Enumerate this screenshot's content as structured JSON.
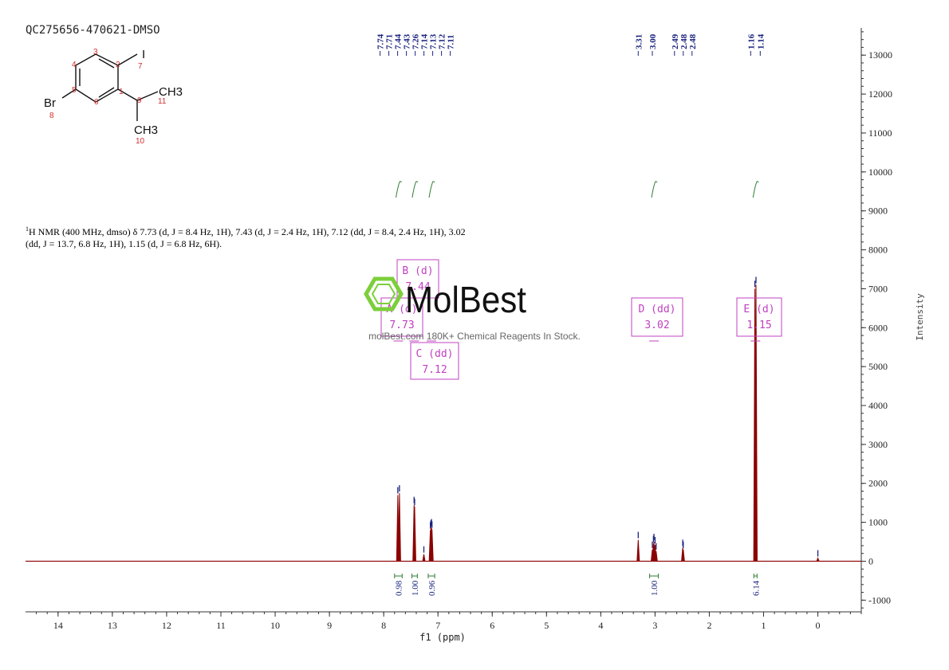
{
  "sample_id": "QC275656-470621-DMSO",
  "nmr_description": {
    "sup": "1",
    "text": "H NMR (400 MHz, dmso) δ 7.73 (d, J = 8.4 Hz, 1H), 7.43 (d, J = 2.4 Hz, 1H), 7.12 (dd, J = 8.4, 2.4 Hz, 1H), 3.02 (dd, J = 13.7, 6.8 Hz, 1H), 1.15 (d, J = 6.8 Hz, 6H)."
  },
  "molecule": {
    "atoms": [
      "I",
      "Br",
      "CH3",
      "CH3"
    ],
    "numbers": [
      "1",
      "2",
      "3",
      "4",
      "5",
      "6",
      "7",
      "8",
      "9",
      "10",
      "11"
    ]
  },
  "watermark": {
    "brand": "MolBest",
    "tagline": "molBest.com 180K+ Chemical Reagents In Stock."
  },
  "colors": {
    "spectrum": "#8b0000",
    "peak_label": "#1a237e",
    "integral": "#2e7d32",
    "multiplet_box": "#c040c0",
    "axis": "#333333",
    "watermark_green": "#7ccf3b"
  },
  "chart_data": {
    "type": "line",
    "title": "",
    "xlabel": "f1 (ppm)",
    "ylabel": "Intensity",
    "xlim": [
      14.6,
      -0.8
    ],
    "ylim": [
      -1300,
      13700
    ],
    "x_ticks": [
      14,
      13,
      12,
      11,
      10,
      9,
      8,
      7,
      6,
      5,
      4,
      3,
      2,
      1,
      0
    ],
    "y_ticks": [
      -1000,
      0,
      1000,
      2000,
      3000,
      4000,
      5000,
      6000,
      7000,
      8000,
      9000,
      10000,
      11000,
      12000,
      13000
    ],
    "grid": false,
    "peaks": [
      {
        "ppm": 7.74,
        "height": 1700
      },
      {
        "ppm": 7.71,
        "height": 1750
      },
      {
        "ppm": 7.44,
        "height": 1450
      },
      {
        "ppm": 7.43,
        "height": 1400
      },
      {
        "ppm": 7.26,
        "height": 180
      },
      {
        "ppm": 7.14,
        "height": 800
      },
      {
        "ppm": 7.13,
        "height": 850
      },
      {
        "ppm": 7.12,
        "height": 880
      },
      {
        "ppm": 7.11,
        "height": 820
      },
      {
        "ppm": 3.31,
        "height": 550
      },
      {
        "ppm": 3.05,
        "height": 300
      },
      {
        "ppm": 3.03,
        "height": 450
      },
      {
        "ppm": 3.02,
        "height": 500
      },
      {
        "ppm": 3.0,
        "height": 420
      },
      {
        "ppm": 2.98,
        "height": 260
      },
      {
        "ppm": 2.49,
        "height": 350
      },
      {
        "ppm": 2.48,
        "height": 300
      },
      {
        "ppm": 1.16,
        "height": 7000
      },
      {
        "ppm": 1.14,
        "height": 7100
      },
      {
        "ppm": 0.0,
        "height": 80
      }
    ],
    "peak_labels": [
      "7.74",
      "7.71",
      "7.44",
      "7.43",
      "7.26",
      "7.14",
      "7.13",
      "7.12",
      "7.11",
      "3.31",
      "3.00",
      "2.49",
      "2.48",
      "2.48",
      "1.16",
      "1.14"
    ],
    "integrals": [
      {
        "from": 7.8,
        "to": 7.66,
        "value": "0.98"
      },
      {
        "from": 7.48,
        "to": 7.38,
        "value": "1.00"
      },
      {
        "from": 7.18,
        "to": 7.06,
        "value": "0.96"
      },
      {
        "from": 3.1,
        "to": 2.94,
        "value": "1.00"
      },
      {
        "from": 1.18,
        "to": 1.12,
        "value": "6.14"
      }
    ],
    "multiplets": [
      {
        "label": "A (d)",
        "shift": "7.73"
      },
      {
        "label": "B (d)",
        "shift": "7.44"
      },
      {
        "label": "C (dd)",
        "shift": "7.12"
      },
      {
        "label": "D (dd)",
        "shift": "3.02"
      },
      {
        "label": "E (d)",
        "shift": "1.15"
      }
    ]
  }
}
